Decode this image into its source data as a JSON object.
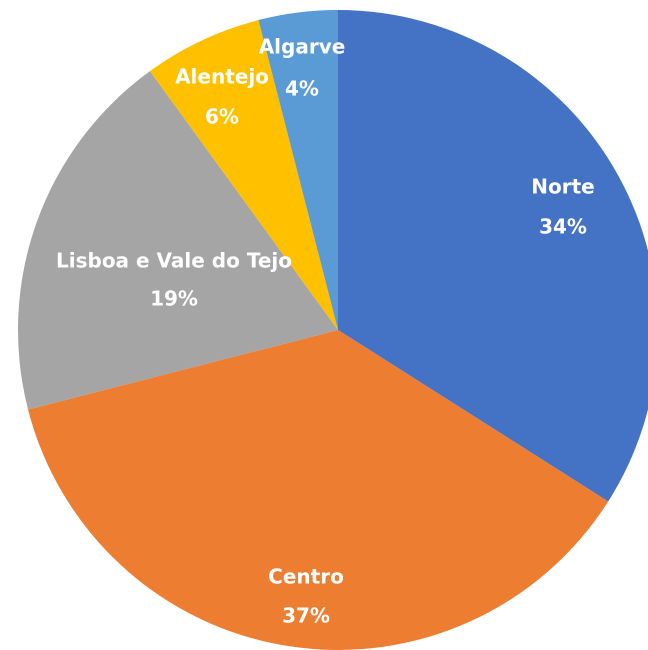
{
  "chart_data": {
    "type": "pie",
    "categories": [
      "Norte",
      "Centro",
      "Lisboa e Vale do Tejo",
      "Alentejo",
      "Algarve"
    ],
    "values": [
      34,
      37,
      19,
      6,
      4
    ],
    "value_labels": [
      "34%",
      "37%",
      "19%",
      "6%",
      "4%"
    ],
    "colors": [
      "#4472c4",
      "#ed7d31",
      "#a5a5a5",
      "#ffc000",
      "#5b9bd5"
    ]
  }
}
